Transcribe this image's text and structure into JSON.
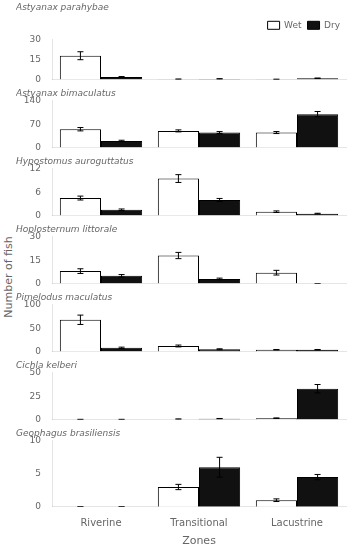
{
  "chart_data": [
    {
      "type": "bar",
      "title": "Astyanax parahybae",
      "categories": [
        null,
        null,
        null
      ],
      "series": [
        {
          "name": "Wet",
          "color": "white",
          "values": [
            18.0,
            0.3,
            0.2
          ],
          "errors": [
            3.0,
            0.1,
            0.1
          ]
        },
        {
          "name": "Dry",
          "color": "#111111",
          "values": [
            2.0,
            0.5,
            1.0
          ],
          "errors": [
            0.3,
            0.2,
            0.2
          ]
        }
      ],
      "ylim": [
        0,
        30
      ],
      "yticks": [
        0,
        15,
        30
      ],
      "grid": false,
      "legend": "upper right",
      "tick_labels": "y"
    },
    {
      "type": "bar",
      "title": "Astyanax bimaculatus",
      "categories": [
        null,
        null,
        null
      ],
      "series": [
        {
          "color": "white",
          "values": [
            55.0,
            50.0,
            45.0
          ],
          "errors": [
            5.0,
            3.0,
            3.0
          ]
        },
        {
          "color": "#111111",
          "values": [
            20.0,
            45.0,
            100.0
          ],
          "errors": [
            2.0,
            3.0,
            8.0
          ]
        }
      ],
      "ylim": [
        0,
        140
      ],
      "yticks": [
        0,
        70,
        140
      ],
      "grid": false,
      "tick_labels": "y"
    },
    {
      "type": "bar",
      "title": "Hypostomus auroguttatus",
      "categories": [
        null,
        null,
        null
      ],
      "series": [
        {
          "color": "white",
          "values": [
            4.5,
            9.5,
            1.0
          ],
          "errors": [
            0.5,
            1.0,
            0.2
          ]
        },
        {
          "color": "#111111",
          "values": [
            1.5,
            4.0,
            0.5
          ],
          "errors": [
            0.2,
            0.4,
            0.1
          ]
        }
      ],
      "ylim": [
        0,
        12
      ],
      "yticks": [
        0,
        6,
        12
      ],
      "grid": false,
      "tick_labels": "y"
    },
    {
      "type": "bar",
      "title": "Hoplosternum littorale",
      "categories": [
        null,
        null,
        null
      ],
      "series": [
        {
          "color": "white",
          "values": [
            8.0,
            18.0,
            7.0
          ],
          "errors": [
            1.5,
            2.0,
            1.5
          ]
        },
        {
          "color": "#111111",
          "values": [
            5.0,
            3.0,
            0.0
          ],
          "errors": [
            0.8,
            0.5,
            0.0
          ]
        }
      ],
      "ylim": [
        0,
        30
      ],
      "yticks": [
        0,
        15,
        30
      ],
      "grid": false,
      "tick_labels": "y",
      "ylabel": "Number of fish"
    },
    {
      "type": "bar",
      "title": "Pimelodus maculatus",
      "categories": [
        null,
        null,
        null
      ],
      "series": [
        {
          "color": "white",
          "values": [
            68.0,
            12.0,
            4.0
          ],
          "errors": [
            10.0,
            2.0,
            0.5
          ]
        },
        {
          "color": "#111111",
          "values": [
            8.0,
            5.0,
            4.0
          ],
          "errors": [
            1.5,
            1.0,
            0.5
          ]
        }
      ],
      "ylim": [
        0,
        100
      ],
      "yticks": [
        0,
        50,
        100
      ],
      "grid": false,
      "tick_labels": "y"
    },
    {
      "type": "bar",
      "title": "Cichla kelberi",
      "categories": [
        null,
        null,
        null
      ],
      "series": [
        {
          "color": "white",
          "values": [
            0.2,
            0.5,
            1.5
          ],
          "errors": [
            0.1,
            0.2,
            0.3
          ]
        },
        {
          "color": "#111111",
          "values": [
            0.2,
            1.0,
            33.0
          ],
          "errors": [
            0.1,
            0.2,
            4.5
          ]
        }
      ],
      "ylim": [
        0,
        50
      ],
      "yticks": [
        0,
        25,
        50
      ],
      "grid": false,
      "tick_labels": "y"
    },
    {
      "type": "bar",
      "title": "Geophagus brasiliensis",
      "categories": [
        "Riverine",
        "Transitional",
        "Lacustrine"
      ],
      "series": [
        {
          "color": "white",
          "values": [
            0.0,
            3.0,
            1.0
          ],
          "errors": [
            0.0,
            0.4,
            0.2
          ]
        },
        {
          "color": "#111111",
          "values": [
            0.0,
            6.0,
            4.5
          ],
          "errors": [
            0.0,
            1.5,
            0.4
          ]
        }
      ],
      "ylim": [
        0,
        10
      ],
      "yticks": [
        0,
        5,
        10
      ],
      "grid": false,
      "xlabel": "Zones"
    }
  ]
}
